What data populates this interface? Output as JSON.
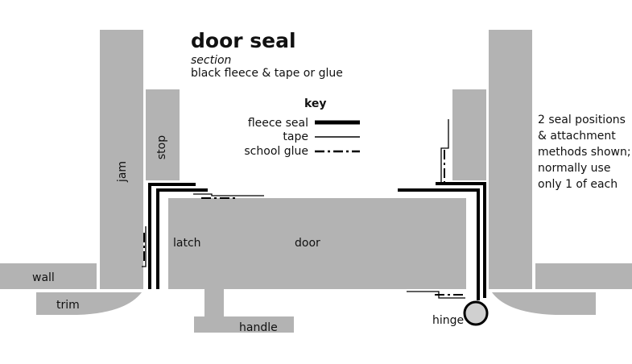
{
  "title": "door seal",
  "subtitle": "section",
  "description": "black fleece & tape or glue",
  "key": {
    "heading": "key",
    "items": [
      {
        "label": "fleece seal",
        "style": "fleece"
      },
      {
        "label": "tape",
        "style": "tape"
      },
      {
        "label": "school glue",
        "style": "glue"
      }
    ]
  },
  "labels": {
    "jamb": "jam",
    "stop": "stop",
    "latch": "latch",
    "door": "door",
    "wall": "wall",
    "trim": "trim",
    "handle": "handle",
    "hinge": "hinge"
  },
  "note": [
    "2 seal positions",
    "& attachment",
    "methods shown;",
    "normally use",
    "only 1 of each"
  ],
  "colors": {
    "part_fill": "#b3b3b3",
    "seal": "#000000",
    "background": "#ffffff"
  }
}
